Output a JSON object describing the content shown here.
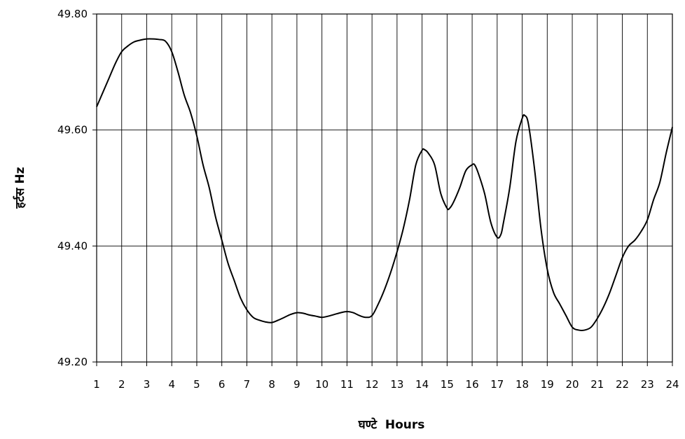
{
  "chart_data": {
    "type": "line",
    "title": "",
    "xlabel": "घण्टे  Hours",
    "ylabel": "हर्टस  Hz",
    "xlim": [
      1,
      24
    ],
    "ylim": [
      49.2,
      49.8
    ],
    "x_ticks": [
      "1",
      "2",
      "3",
      "4",
      "5",
      "6",
      "7",
      "8",
      "9",
      "10",
      "11",
      "12",
      "13",
      "14",
      "15",
      "16",
      "17",
      "18",
      "19",
      "20",
      "21",
      "22",
      "23",
      "24"
    ],
    "y_ticks": [
      "49.20",
      "49.40",
      "49.60",
      "49.80"
    ],
    "grid": true,
    "line_color": "#000000",
    "series": [
      {
        "x": [
          1.0,
          1.25,
          1.5,
          1.75,
          2.0,
          2.25,
          2.5,
          2.75,
          3.0,
          3.25,
          3.5,
          3.75,
          4.0,
          4.25,
          4.5,
          4.75,
          5.0,
          5.25,
          5.5,
          5.75,
          6.0,
          6.25,
          6.5,
          6.75,
          7.0,
          7.25,
          7.5,
          7.75,
          8.0,
          8.25,
          8.5,
          8.75,
          9.0,
          9.25,
          9.5,
          9.75,
          10.0,
          10.25,
          10.5,
          10.75,
          11.0,
          11.25,
          11.5,
          11.75,
          12.0,
          12.25,
          12.5,
          12.75,
          13.0,
          13.25,
          13.5,
          13.75,
          14.0,
          14.1,
          14.25,
          14.5,
          14.75,
          15.0,
          15.1,
          15.25,
          15.5,
          15.75,
          16.0,
          16.1,
          16.25,
          16.5,
          16.75,
          17.0,
          17.15,
          17.25,
          17.5,
          17.75,
          18.0,
          18.1,
          18.25,
          18.5,
          18.75,
          19.0,
          19.25,
          19.5,
          19.75,
          20.0,
          20.25,
          20.5,
          20.75,
          21.0,
          21.25,
          21.5,
          21.75,
          22.0,
          22.25,
          22.5,
          22.75,
          23.0,
          23.25,
          23.5,
          23.75,
          24.0
        ],
        "values": [
          49.64,
          49.665,
          49.69,
          49.715,
          49.735,
          49.745,
          49.752,
          49.755,
          49.757,
          49.757,
          49.756,
          49.753,
          49.735,
          49.7,
          49.66,
          49.63,
          49.59,
          49.54,
          49.5,
          49.45,
          49.41,
          49.37,
          49.34,
          49.31,
          49.29,
          49.277,
          49.272,
          49.269,
          49.268,
          49.272,
          49.277,
          49.282,
          49.285,
          49.284,
          49.281,
          49.279,
          49.277,
          49.279,
          49.282,
          49.285,
          49.287,
          49.285,
          49.28,
          49.277,
          49.28,
          49.3,
          49.325,
          49.355,
          49.39,
          49.43,
          49.48,
          49.54,
          49.565,
          49.566,
          49.56,
          49.54,
          49.49,
          49.465,
          49.465,
          49.475,
          49.5,
          49.53,
          49.54,
          49.54,
          49.525,
          49.49,
          49.44,
          49.415,
          49.42,
          49.44,
          49.5,
          49.58,
          49.62,
          49.625,
          49.61,
          49.53,
          49.43,
          49.36,
          49.32,
          49.3,
          49.28,
          49.26,
          49.255,
          49.255,
          49.26,
          49.275,
          49.295,
          49.32,
          49.35,
          49.38,
          49.4,
          49.41,
          49.425,
          49.445,
          49.48,
          49.51,
          49.56,
          49.605
        ]
      }
    ]
  }
}
